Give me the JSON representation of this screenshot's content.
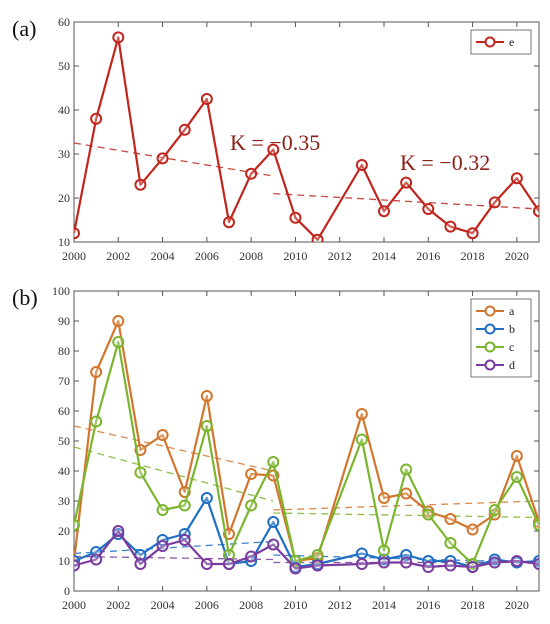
{
  "chart_data": [
    {
      "panel_label": "(a)",
      "type": "line",
      "x": [
        2000,
        2001,
        2002,
        2003,
        2004,
        2005,
        2006,
        2007,
        2008,
        2009,
        2010,
        2011,
        2012,
        2013,
        2014,
        2015,
        2016,
        2017,
        2018,
        2019,
        2020,
        2021
      ],
      "series": [
        {
          "name": "e",
          "color": "#c0261d",
          "marker": "circle",
          "values": [
            12,
            38,
            56.5,
            23,
            29,
            35.5,
            42.5,
            14.5,
            25.5,
            31,
            15.5,
            10.5,
            null,
            27.5,
            17,
            23.5,
            17.5,
            13.5,
            12,
            19,
            24.5,
            17
          ]
        }
      ],
      "trend_lines": [
        {
          "color": "#c0261d",
          "x": [
            2000,
            2009
          ],
          "y": [
            32.5,
            25
          ],
          "label": "K = −0.35"
        },
        {
          "color": "#c0261d",
          "x": [
            2009,
            2021
          ],
          "y": [
            21,
            17.5
          ],
          "label": "K = −0.32"
        }
      ],
      "xlim": [
        2000,
        2021
      ],
      "ylim": [
        10,
        60
      ],
      "xticks": [
        "2000",
        "2002",
        "2004",
        "2006",
        "2008",
        "2010",
        "2012",
        "2014",
        "2016",
        "2018",
        "2020"
      ],
      "yticks": [
        "10",
        "20",
        "30",
        "40",
        "50",
        "60"
      ],
      "legend": {
        "position": "top-right",
        "entries": [
          "e"
        ]
      },
      "grid": false
    },
    {
      "panel_label": "(b)",
      "type": "line",
      "x": [
        2000,
        2001,
        2002,
        2003,
        2004,
        2005,
        2006,
        2007,
        2008,
        2009,
        2010,
        2011,
        2012,
        2013,
        2014,
        2015,
        2016,
        2017,
        2018,
        2019,
        2020,
        2021
      ],
      "series": [
        {
          "name": "a",
          "color": "#d2762e",
          "marker": "circle",
          "values": [
            10,
            73,
            90,
            47,
            52,
            33,
            65,
            19,
            39,
            38.5,
            10,
            11,
            null,
            59,
            31,
            32.5,
            26.5,
            24,
            20.5,
            25.5,
            45,
            23
          ]
        },
        {
          "name": "b",
          "color": "#1f6fc4",
          "marker": "circle",
          "values": [
            10,
            13,
            19,
            12,
            17,
            19,
            31,
            9,
            10,
            23,
            8,
            9,
            null,
            12.5,
            10.5,
            12,
            10,
            10,
            8,
            10.5,
            9.5,
            10
          ]
        },
        {
          "name": "c",
          "color": "#7ab52d",
          "marker": "circle",
          "values": [
            22,
            56.5,
            83,
            39.5,
            27,
            28.5,
            55,
            12,
            28.5,
            43,
            10,
            12,
            null,
            50.5,
            13.5,
            40.5,
            25.5,
            16,
            9,
            27,
            38,
            22
          ]
        },
        {
          "name": "d",
          "color": "#7a3b9e",
          "marker": "circle",
          "values": [
            8.5,
            10.5,
            20,
            9,
            15,
            17,
            9,
            9,
            11.5,
            15.5,
            7.5,
            8.5,
            null,
            9,
            9.5,
            9.5,
            8,
            8.5,
            8,
            9.5,
            10,
            9
          ]
        }
      ],
      "trend_lines": [
        {
          "color": "#d2762e",
          "x": [
            2000,
            2009
          ],
          "y": [
            55,
            40
          ]
        },
        {
          "color": "#d2762e",
          "x": [
            2009,
            2021
          ],
          "y": [
            27,
            30
          ]
        },
        {
          "color": "#7ab52d",
          "x": [
            2000,
            2009
          ],
          "y": [
            48,
            30
          ]
        },
        {
          "color": "#7ab52d",
          "x": [
            2009,
            2021
          ],
          "y": [
            26,
            24.5
          ]
        },
        {
          "color": "#1f6fc4",
          "x": [
            2000,
            2009
          ],
          "y": [
            12.5,
            16.5
          ]
        },
        {
          "color": "#1f6fc4",
          "x": [
            2009,
            2021
          ],
          "y": [
            12,
            9.5
          ]
        },
        {
          "color": "#7a3b9e",
          "x": [
            2000,
            2009
          ],
          "y": [
            11.5,
            10.5
          ]
        },
        {
          "color": "#7a3b9e",
          "x": [
            2009,
            2021
          ],
          "y": [
            9.5,
            9.5
          ]
        }
      ],
      "xlim": [
        2000,
        2021
      ],
      "ylim": [
        0,
        100
      ],
      "xticks": [
        "2000",
        "2002",
        "2004",
        "2006",
        "2008",
        "2010",
        "2012",
        "2014",
        "2016",
        "2018",
        "2020"
      ],
      "yticks": [
        "0",
        "10",
        "20",
        "30",
        "40",
        "50",
        "60",
        "70",
        "80",
        "90",
        "100"
      ],
      "legend": {
        "position": "top-right",
        "entries": [
          "a",
          "b",
          "c",
          "d"
        ]
      },
      "grid": false
    }
  ]
}
